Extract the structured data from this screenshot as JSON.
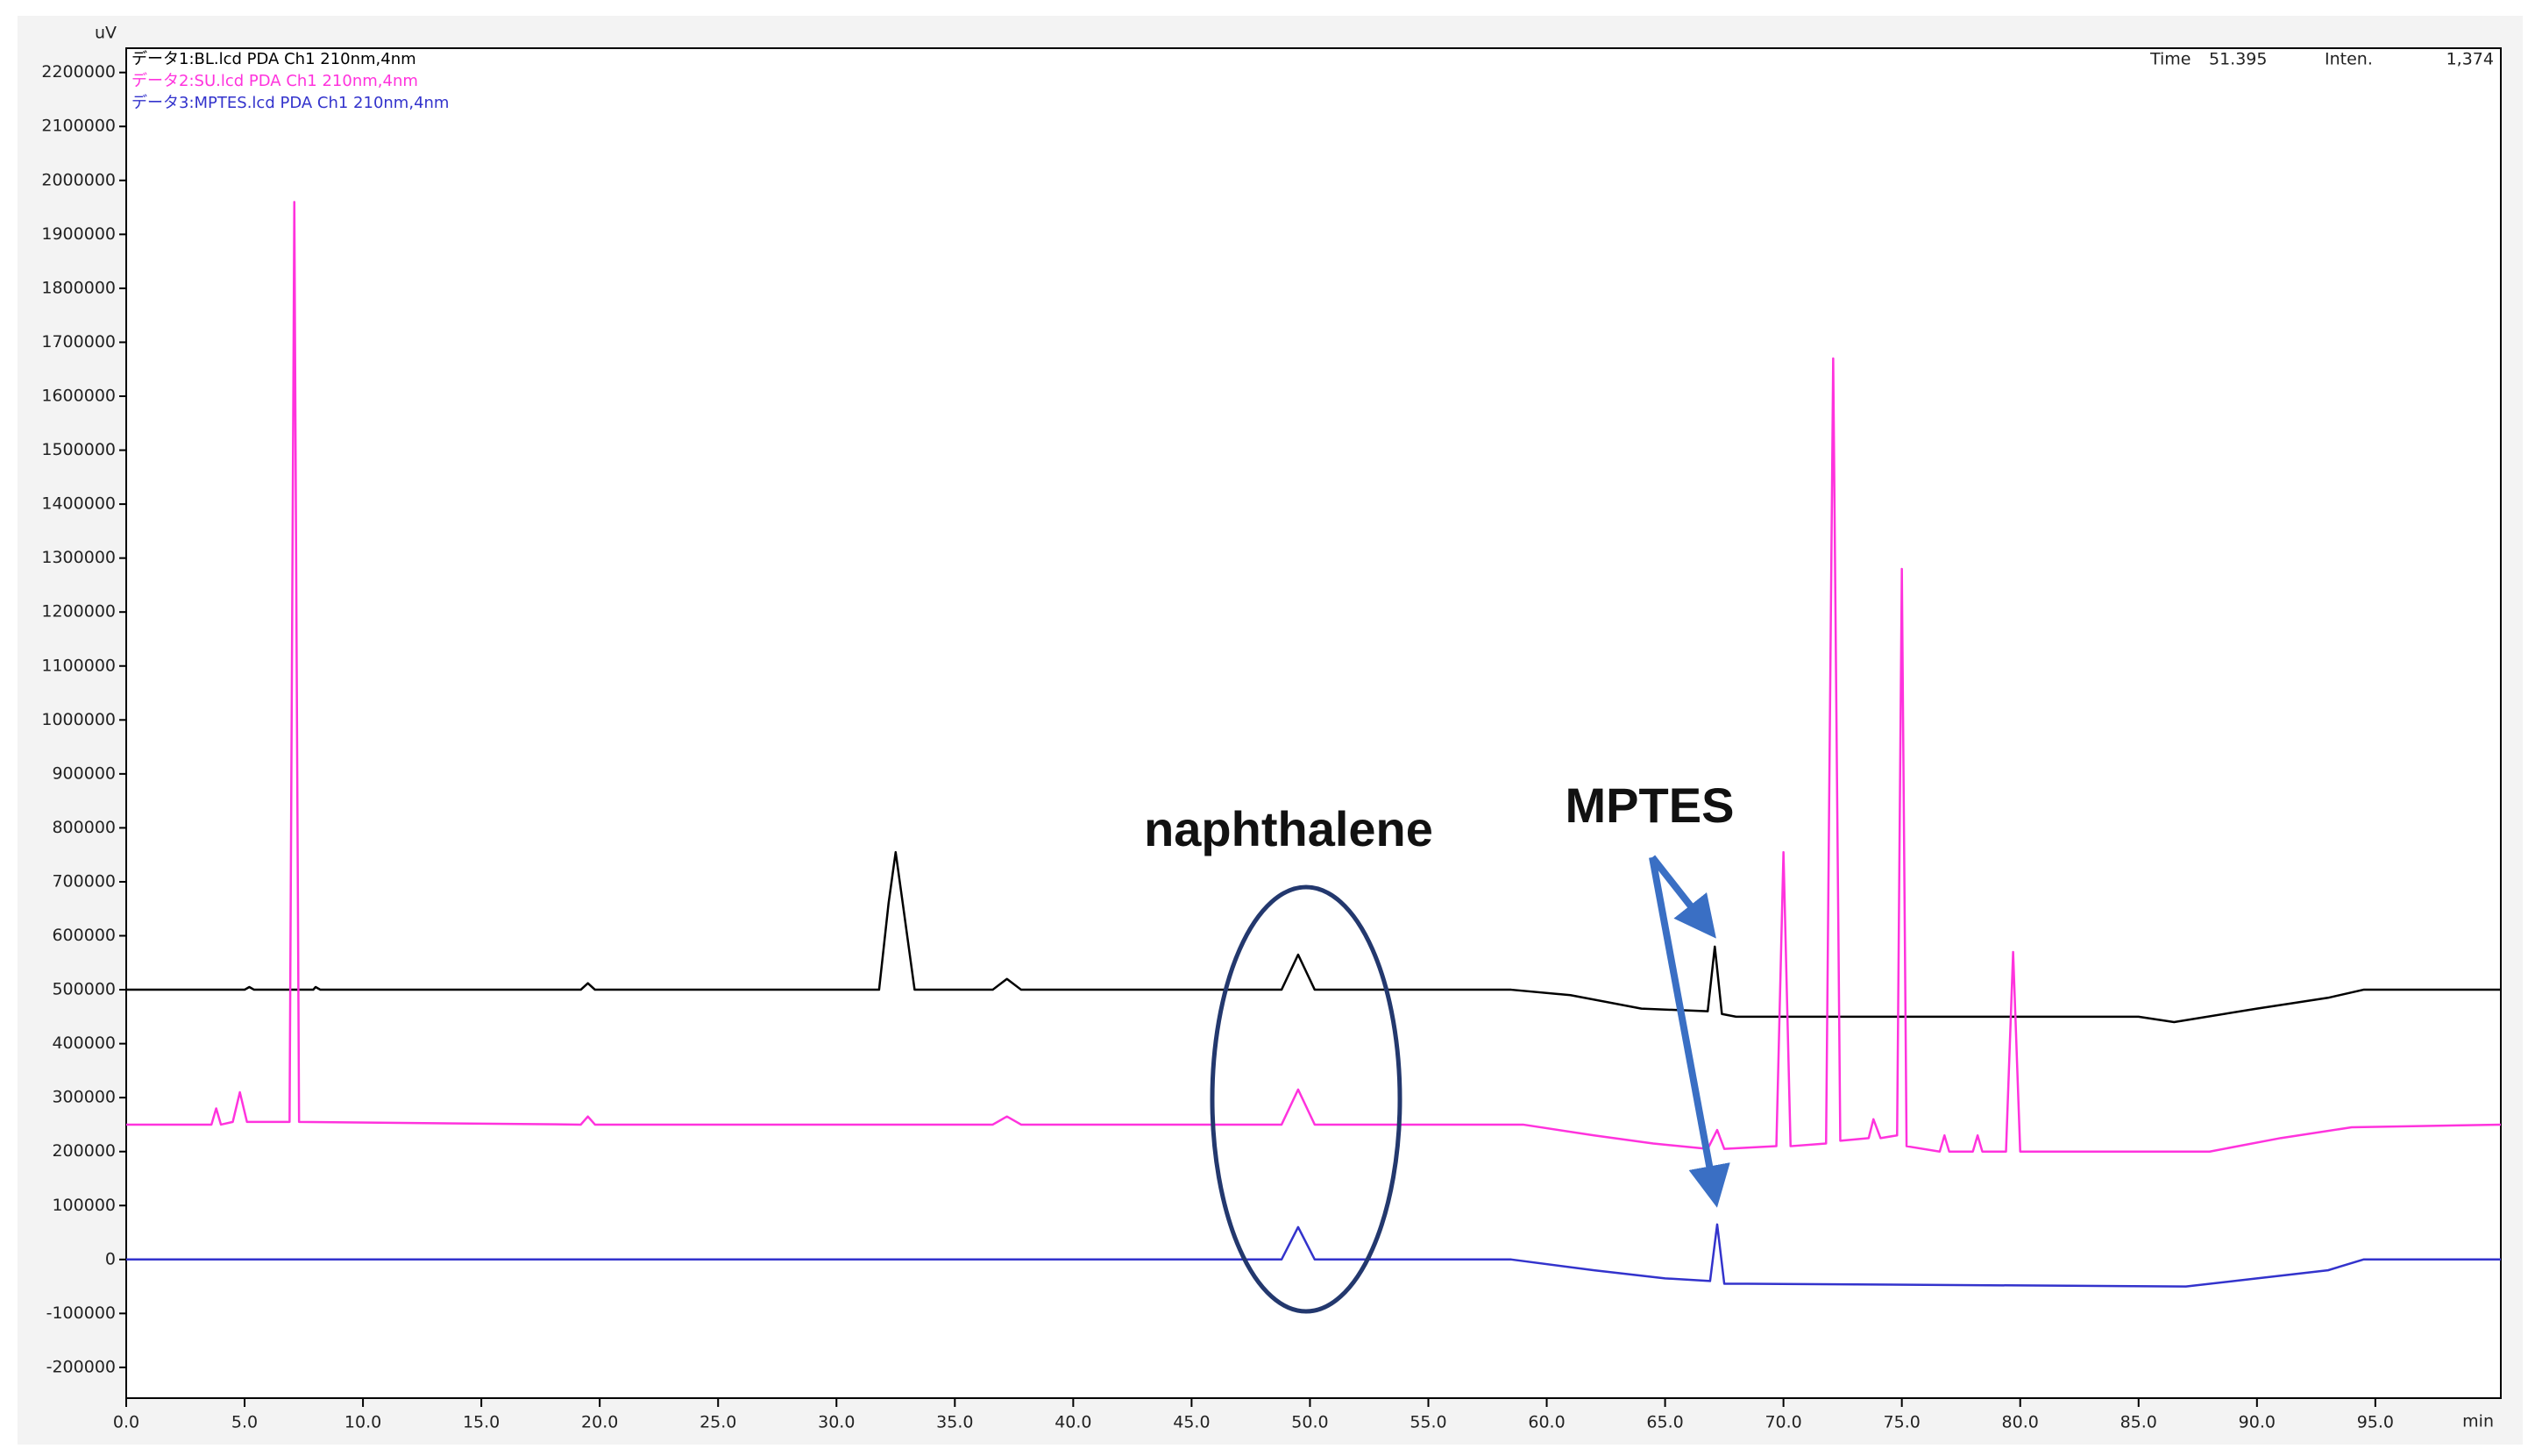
{
  "chart_data": {
    "type": "line",
    "y_label": "uV",
    "x_label": "min",
    "readout": {
      "time_label": "Time",
      "time": "51.395",
      "inten_label": "Inten.",
      "inten": "1,374"
    },
    "annotations": [
      "naphthalene",
      "MPTES"
    ],
    "xlim": [
      0,
      100.3
    ],
    "ylim": [
      -257000,
      2245000
    ],
    "xticks": [
      {
        "value": 0,
        "label": "0.0"
      },
      {
        "value": 5,
        "label": "5.0"
      },
      {
        "value": 10,
        "label": "10.0"
      },
      {
        "value": 15,
        "label": "15.0"
      },
      {
        "value": 20,
        "label": "20.0"
      },
      {
        "value": 25,
        "label": "25.0"
      },
      {
        "value": 30,
        "label": "30.0"
      },
      {
        "value": 35,
        "label": "35.0"
      },
      {
        "value": 40,
        "label": "40.0"
      },
      {
        "value": 45,
        "label": "45.0"
      },
      {
        "value": 50,
        "label": "50.0"
      },
      {
        "value": 55,
        "label": "55.0"
      },
      {
        "value": 60,
        "label": "60.0"
      },
      {
        "value": 65,
        "label": "65.0"
      },
      {
        "value": 70,
        "label": "70.0"
      },
      {
        "value": 75,
        "label": "75.0"
      },
      {
        "value": 80,
        "label": "80.0"
      },
      {
        "value": 85,
        "label": "85.0"
      },
      {
        "value": 90,
        "label": "90.0"
      },
      {
        "value": 95,
        "label": "95.0"
      }
    ],
    "yticks": [
      -200000,
      -100000,
      0,
      100000,
      200000,
      300000,
      400000,
      500000,
      600000,
      700000,
      800000,
      900000,
      1000000,
      1100000,
      1200000,
      1300000,
      1400000,
      1500000,
      1600000,
      1700000,
      1800000,
      1900000,
      2000000,
      2100000,
      2200000
    ],
    "series": [
      {
        "name": "データ1:BL.lcd PDA Ch1 210nm,4nm",
        "color": "#000000",
        "x": [
          0,
          5.0,
          5.2,
          5.4,
          7.9,
          8.0,
          8.2,
          19.2,
          19.5,
          19.8,
          31.8,
          32.2,
          32.5,
          32.8,
          33.3,
          36.6,
          37.2,
          37.8,
          48.8,
          49.5,
          50.2,
          58.5,
          61,
          64,
          66.8,
          67.1,
          67.4,
          68,
          85,
          86.5,
          90,
          93,
          94.5,
          100.3
        ],
        "values": [
          500000,
          500000,
          505000,
          500000,
          500000,
          505000,
          500000,
          500000,
          512000,
          500000,
          500000,
          660000,
          755000,
          660000,
          500000,
          500000,
          520000,
          500000,
          500000,
          565000,
          500000,
          500000,
          490000,
          465000,
          460000,
          580000,
          455000,
          450000,
          450000,
          440000,
          465000,
          485000,
          500000,
          500000
        ]
      },
      {
        "name": "データ2:SU.lcd PDA Ch1 210nm,4nm",
        "color": "#ff33dd",
        "x": [
          0,
          3.6,
          3.8,
          4.0,
          4.5,
          4.8,
          5.1,
          6.9,
          7.1,
          7.3,
          19.2,
          19.5,
          19.8,
          36.6,
          37.2,
          37.8,
          48.8,
          49.5,
          50.2,
          59,
          62,
          64.5,
          66.8,
          67.2,
          67.5,
          69.7,
          70.0,
          70.3,
          71.8,
          72.1,
          72.4,
          73.6,
          73.8,
          74.1,
          74.8,
          75.0,
          75.2,
          76.6,
          76.8,
          77.0,
          78.0,
          78.2,
          78.4,
          79.4,
          79.7,
          80.0,
          88,
          91,
          94,
          100.3
        ],
        "values": [
          250000,
          250000,
          280000,
          250000,
          255000,
          310000,
          255000,
          255000,
          1960000,
          255000,
          250000,
          265000,
          250000,
          250000,
          265000,
          250000,
          250000,
          315000,
          250000,
          250000,
          230000,
          215000,
          205000,
          240000,
          205000,
          210000,
          755000,
          210000,
          215000,
          1670000,
          220000,
          225000,
          260000,
          225000,
          230000,
          1280000,
          210000,
          200000,
          230000,
          200000,
          200000,
          230000,
          200000,
          200000,
          570000,
          200000,
          200000,
          225000,
          245000,
          250000
        ]
      },
      {
        "name": "データ3:MPTES.lcd PDA Ch1 210nm,4nm",
        "color": "#3333cc",
        "x": [
          0,
          48.8,
          49.5,
          50.2,
          58.5,
          62,
          65,
          66.9,
          67.2,
          67.5,
          68.5,
          87,
          90,
          93,
          94.5,
          100.3
        ],
        "values": [
          0,
          0,
          60000,
          0,
          0,
          -20000,
          -35000,
          -40000,
          65000,
          -45000,
          -45000,
          -50000,
          -35000,
          -20000,
          0,
          0
        ]
      }
    ]
  }
}
